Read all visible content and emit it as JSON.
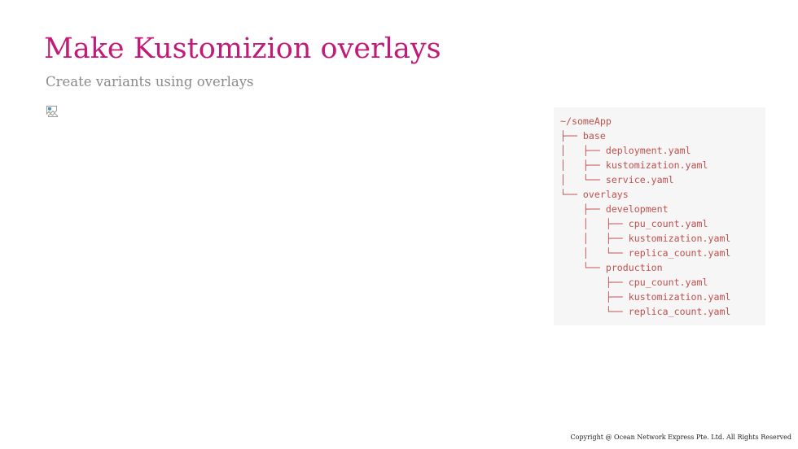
{
  "slide": {
    "title": "Make Kustomizion overlays",
    "subtitle": "Create variants using overlays",
    "copyright": "Copyright @ Ocean Network Express Pte. Ltd. All Rights Reserved"
  },
  "code": {
    "lines": [
      "~/someApp",
      "├── base",
      "│   ├── deployment.yaml",
      "│   ├── kustomization.yaml",
      "│   └── service.yaml",
      "└── overlays",
      "    ├── development",
      "    │   ├── cpu_count.yaml",
      "    │   ├── kustomization.yaml",
      "    │   └── replica_count.yaml",
      "    └── production",
      "        ├── cpu_count.yaml",
      "        ├── kustomization.yaml",
      "        └── replica_count.yaml"
    ]
  },
  "colors": {
    "title": "#c21a78",
    "subtitle": "#8a8a8a",
    "code_text": "#c0504d",
    "code_background": "#f6f6f6"
  },
  "icons": {
    "image": "broken-image-icon"
  }
}
